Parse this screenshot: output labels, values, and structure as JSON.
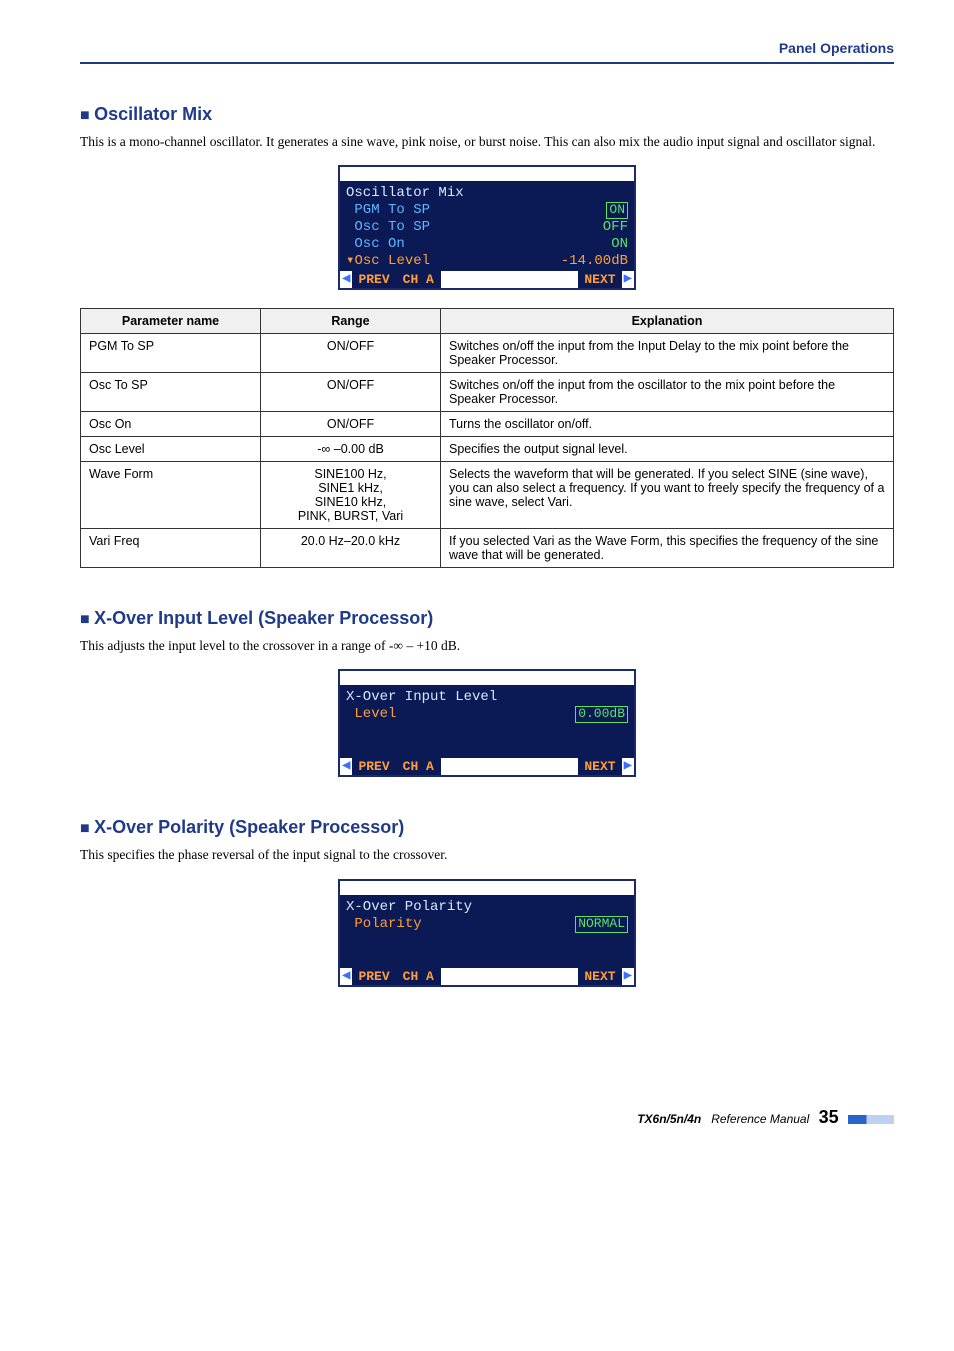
{
  "header": {
    "section_title": "Panel Operations"
  },
  "sections": {
    "osc": {
      "heading": "Oscillator Mix",
      "body": "This is a mono-channel oscillator. It generates a sine wave, pink noise, or burst noise. This can also mix the audio input signal and oscillator signal.",
      "lcd": {
        "title": "Oscillator Mix",
        "rows": [
          {
            "label": "PGM To SP",
            "value": "ON",
            "boxed": true
          },
          {
            "label": "Osc To SP",
            "value": "OFF",
            "boxed": false
          },
          {
            "label": "Osc On",
            "value": "ON",
            "boxed": false
          }
        ],
        "sel_row": {
          "marker": "▾",
          "label": "Osc Level",
          "value": "-14.00dB"
        },
        "nav": {
          "prev": "PREV",
          "ch": "CH A",
          "next": "NEXT"
        }
      },
      "table": {
        "headers": [
          "Parameter name",
          "Range",
          "Explanation"
        ],
        "rows": [
          [
            "PGM To SP",
            "ON/OFF",
            "Switches on/off the input from the Input Delay to the mix point before the Speaker Processor."
          ],
          [
            "Osc To SP",
            "ON/OFF",
            "Switches on/off the input from the oscillator to the mix point before the Speaker Processor."
          ],
          [
            "Osc On",
            "ON/OFF",
            "Turns the oscillator on/off."
          ],
          [
            "Osc Level",
            "-∞ –0.00 dB",
            "Specifies the output signal level."
          ],
          [
            "Wave Form",
            "SINE100 Hz,\nSINE1 kHz,\nSINE10 kHz,\nPINK, BURST, Vari",
            "Selects the waveform that will be generated. If you select SINE (sine wave), you can also select a frequency. If you want to freely specify the frequency of a sine wave, select Vari."
          ],
          [
            "Vari Freq",
            "20.0 Hz–20.0 kHz",
            "If you selected Vari as the Wave Form, this specifies the frequency of the sine wave that will be generated."
          ]
        ]
      }
    },
    "xolevel": {
      "heading": "X-Over Input Level (Speaker Processor)",
      "body": "This adjusts the input level to the crossover in a range of -∞ – +10 dB.",
      "lcd": {
        "title": "X-Over Input Level",
        "row": {
          "label": "Level",
          "value": "0.00dB"
        },
        "nav": {
          "prev": "PREV",
          "ch": "CH A",
          "next": "NEXT"
        }
      }
    },
    "xopol": {
      "heading": "X-Over Polarity (Speaker Processor)",
      "body": "This specifies the phase reversal of the input signal to the crossover.",
      "lcd": {
        "title": "X-Over Polarity",
        "row": {
          "label": "Polarity",
          "value": "NORMAL"
        },
        "nav": {
          "prev": "PREV",
          "ch": "CH A",
          "next": "NEXT"
        }
      }
    }
  },
  "footer": {
    "model": "TX6n/5n/4n",
    "ref": "Reference Manual",
    "page": "35"
  }
}
